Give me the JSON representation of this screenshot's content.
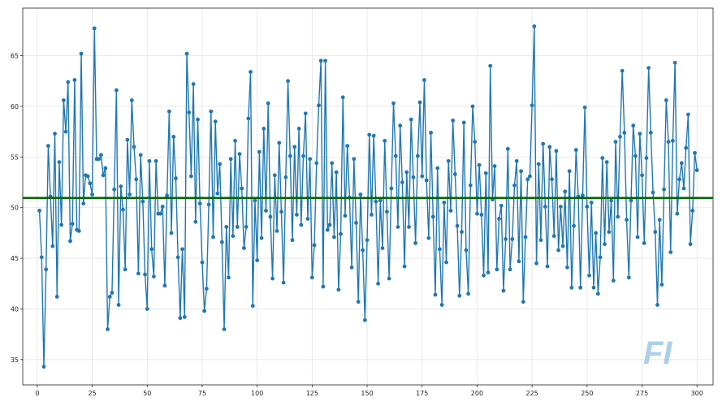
{
  "chart_data": {
    "type": "line",
    "title": "",
    "xlabel": "",
    "ylabel": "",
    "xlim": [
      -6.6,
      307.3
    ],
    "ylim": [
      32.5,
      69.7
    ],
    "x_ticks": [
      0,
      25,
      50,
      75,
      100,
      125,
      150,
      175,
      200,
      225,
      250,
      275,
      300
    ],
    "y_ticks": [
      35,
      40,
      45,
      50,
      55,
      60,
      65
    ],
    "grid": true,
    "x_start": 1,
    "series": [
      {
        "name": "values",
        "color": "#1f77b4",
        "markers": true,
        "values": [
          49.7,
          45.1,
          34.3,
          43.9,
          56.1,
          51.1,
          46.2,
          57.3,
          41.2,
          54.5,
          48.3,
          60.6,
          57.5,
          62.4,
          46.7,
          48.4,
          62.6,
          47.8,
          47.7,
          65.2,
          50.4,
          53.2,
          53.1,
          52.4,
          51.3,
          67.7,
          54.8,
          54.8,
          55.2,
          53.2,
          53.9,
          38.0,
          41.2,
          41.6,
          51.8,
          61.6,
          40.4,
          52.1,
          49.8,
          43.9,
          56.7,
          51.3,
          60.6,
          56.0,
          52.8,
          43.5,
          55.2,
          50.6,
          43.4,
          40.0,
          54.6,
          45.9,
          43.2,
          54.6,
          49.4,
          49.4,
          50.1,
          42.3,
          51.2,
          59.5,
          47.5,
          57.0,
          52.9,
          45.1,
          39.1,
          45.9,
          39.2,
          65.2,
          59.4,
          53.1,
          62.2,
          48.6,
          58.7,
          50.4,
          44.6,
          39.8,
          42.0,
          50.3,
          59.5,
          47.1,
          58.5,
          51.4,
          54.3,
          46.6,
          38.0,
          48.1,
          43.1,
          54.8,
          47.2,
          56.6,
          48.1,
          55.3,
          51.9,
          46.0,
          48.1,
          58.8,
          63.4,
          40.3,
          50.7,
          44.8,
          55.5,
          47.0,
          57.8,
          49.7,
          60.3,
          49.1,
          43.0,
          53.2,
          47.7,
          56.4,
          49.6,
          42.6,
          53.0,
          62.5,
          55.1,
          46.8,
          56.0,
          49.3,
          57.8,
          48.3,
          55.1,
          59.3,
          48.9,
          54.8,
          43.1,
          46.3,
          54.4,
          60.1,
          64.5,
          42.2,
          64.5,
          47.8,
          48.3,
          54.4,
          47.1,
          53.5,
          41.9,
          47.4,
          60.9,
          49.2,
          56.1,
          51.0,
          44.1,
          54.8,
          48.5,
          40.7,
          51.3,
          45.8,
          38.9,
          46.8,
          57.2,
          49.3,
          57.1,
          50.6,
          42.5,
          50.7,
          46.0,
          56.6,
          49.6,
          43.0,
          51.9,
          60.3,
          55.1,
          48.1,
          58.1,
          52.5,
          44.2,
          53.5,
          48.1,
          58.7,
          53.0,
          46.5,
          55.1,
          60.4,
          53.1,
          62.6,
          52.7,
          47.0,
          57.4,
          49.1,
          41.4,
          53.9,
          45.9,
          40.4,
          50.5,
          44.6,
          54.6,
          49.7,
          58.6,
          53.3,
          48.2,
          41.3,
          47.6,
          58.4,
          45.8,
          41.5,
          52.2,
          60.0,
          56.5,
          49.4,
          54.2,
          49.3,
          43.3,
          53.4,
          43.6,
          64.0,
          50.8,
          54.1,
          43.9,
          48.9,
          50.2,
          41.8,
          46.9,
          55.8,
          43.9,
          46.9,
          52.2,
          54.6,
          44.7,
          53.6,
          40.7,
          47.1,
          52.8,
          53.1,
          60.1,
          67.9,
          44.5,
          54.3,
          46.8,
          56.3,
          50.1,
          44.2,
          56.0,
          52.8,
          47.2,
          55.6,
          45.8,
          50.1,
          46.2,
          51.6,
          44.1,
          53.6,
          42.1,
          48.2,
          55.7,
          51.1,
          42.1,
          51.2,
          59.9,
          50.1,
          43.3,
          50.5,
          42.1,
          47.5,
          41.5,
          45.1,
          54.9,
          46.4,
          54.5,
          47.6,
          50.7,
          42.8,
          56.5,
          49.1,
          57.0,
          63.5,
          57.4,
          48.8,
          43.1,
          50.7,
          58.1,
          55.1,
          47.1,
          57.3,
          53.2,
          46.5,
          54.9,
          63.8,
          57.4,
          51.5,
          47.6,
          40.4,
          48.8,
          42.4,
          51.8,
          60.6,
          56.5,
          45.6,
          56.6,
          64.3,
          49.4,
          52.8,
          54.4,
          51.9,
          55.9,
          59.2,
          46.4,
          49.7,
          55.4,
          53.7
        ]
      }
    ],
    "hline": {
      "value": 50.96,
      "color": "#006400"
    }
  },
  "watermark": "FI"
}
